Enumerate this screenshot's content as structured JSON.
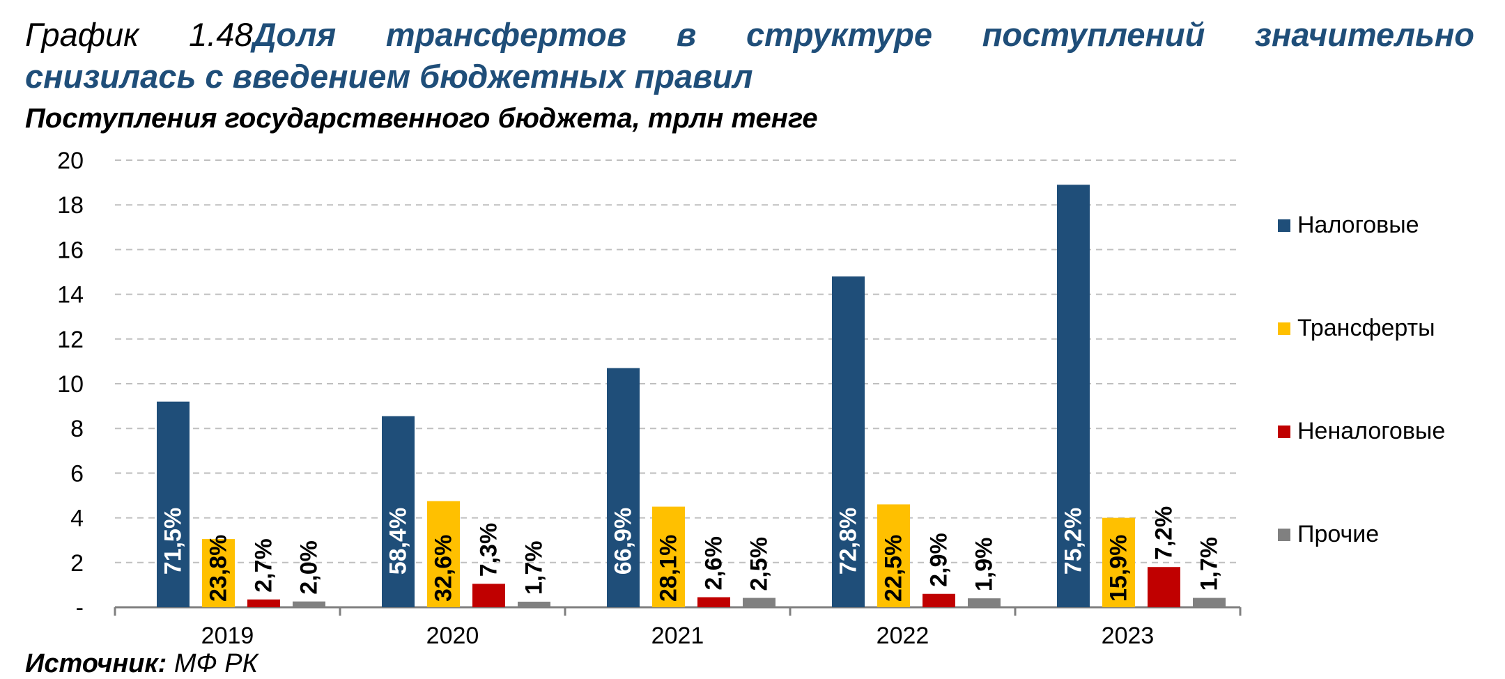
{
  "title": {
    "prefix": "График 1.48",
    "line1": "Доля трансфертов в структуре поступлений значительно",
    "line2": "снизилась с введением бюджетных правил"
  },
  "subtitle": "Поступления государственного бюджета, трлн тенге",
  "source": {
    "label": "Источник:",
    "value": "МФ РК"
  },
  "chart_data": {
    "type": "bar",
    "categories": [
      "2019",
      "2020",
      "2021",
      "2022",
      "2023"
    ],
    "ylim": [
      0,
      20
    ],
    "yticks": [
      "-",
      "2",
      "4",
      "6",
      "8",
      "10",
      "12",
      "14",
      "16",
      "18",
      "20"
    ],
    "grid": true,
    "legend_position": "right",
    "series": [
      {
        "name": "Налоговые",
        "color": "#1f4e79",
        "values": [
          9.2,
          8.55,
          10.7,
          14.8,
          18.9
        ],
        "labels": [
          "71,5%",
          "58,4%",
          "66,9%",
          "72,8%",
          "75,2%"
        ]
      },
      {
        "name": "Трансферты",
        "color": "#ffc000",
        "values": [
          3.05,
          4.75,
          4.5,
          4.6,
          4.0
        ],
        "labels": [
          "23,8%",
          "32,6%",
          "28,1%",
          "22,5%",
          "15,9%"
        ]
      },
      {
        "name": "Неналоговые",
        "color": "#c00000",
        "values": [
          0.35,
          1.05,
          0.45,
          0.6,
          1.8
        ],
        "labels": [
          "2,7%",
          "7,3%",
          "2,6%",
          "2,9%",
          "7,2%"
        ]
      },
      {
        "name": "Прочие",
        "color": "#808080",
        "values": [
          0.26,
          0.25,
          0.42,
          0.4,
          0.42
        ],
        "labels": [
          "2,0%",
          "1,7%",
          "2,5%",
          "1,9%",
          "1,7%"
        ]
      }
    ]
  }
}
